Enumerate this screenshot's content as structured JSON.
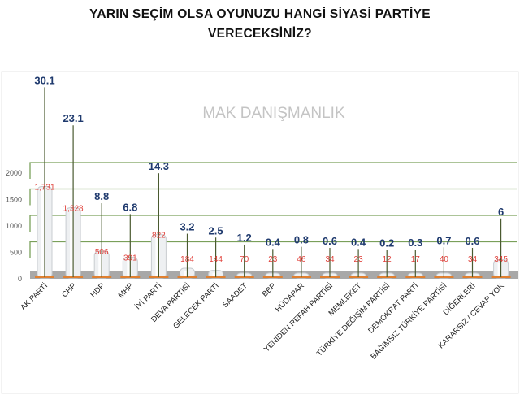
{
  "chart_data": {
    "type": "bar",
    "title_lines": [
      "YARIN SEÇİM OLSA OYUNUZU HANGİ SİYASİ PARTİYE",
      "VERECEKSİNİZ?"
    ],
    "watermark": "MAK DANIŞMANLIK",
    "categories": [
      "AK PARTİ",
      "CHP",
      "HDP",
      "MHP",
      "İYİ PARTİ",
      "DEVA PARTİSİ",
      "GELECEK PARTİ",
      "SAADET",
      "BBP",
      "HÜDAPAR",
      "YENİDEN REFAH PARTİSİ",
      "MEMLEKET",
      "TÜRKİYE DEĞİŞİM PARTİSİ",
      "DEMOKRAT PARTİ",
      "BAĞIMSIZ TÜRKİYE PARTİSİ",
      "DİĞERLERİ",
      "KARARSIZ / CEVAP YOK"
    ],
    "series": [
      {
        "name": "count",
        "values": [
          1731,
          1328,
          506,
          391,
          822,
          184,
          144,
          70,
          23,
          46,
          34,
          23,
          12,
          17,
          40,
          34,
          345
        ],
        "labels": [
          "1,731",
          "1,328",
          "506",
          "391",
          "822",
          "184",
          "144",
          "70",
          "23",
          "46",
          "34",
          "23",
          "12",
          "17",
          "40",
          "34",
          "345"
        ]
      },
      {
        "name": "percent",
        "values": [
          30.1,
          23.1,
          8.8,
          6.8,
          14.3,
          3.2,
          2.5,
          1.2,
          0.4,
          0.8,
          0.6,
          0.4,
          0.2,
          0.3,
          0.7,
          0.6,
          6
        ],
        "labels": [
          "30.1",
          "23.1",
          "8.8",
          "6.8",
          "14.3",
          "3.2",
          "2.5",
          "1.2",
          "0.4",
          "0.8",
          "0.6",
          "0.4",
          "0.2",
          "0.3",
          "0.7",
          "0.6",
          "6"
        ]
      }
    ],
    "yticks": [
      "0",
      "500",
      "1000",
      "1500",
      "2000"
    ],
    "ylim": [
      0,
      2000
    ],
    "grid": true,
    "colors": {
      "count_label": "#e0403a",
      "percent_label": "#1f3a6e",
      "grid": "#7aa05a",
      "floor": "#a8a8a8",
      "leader": "#4a5a30",
      "base": "#e08030"
    }
  }
}
